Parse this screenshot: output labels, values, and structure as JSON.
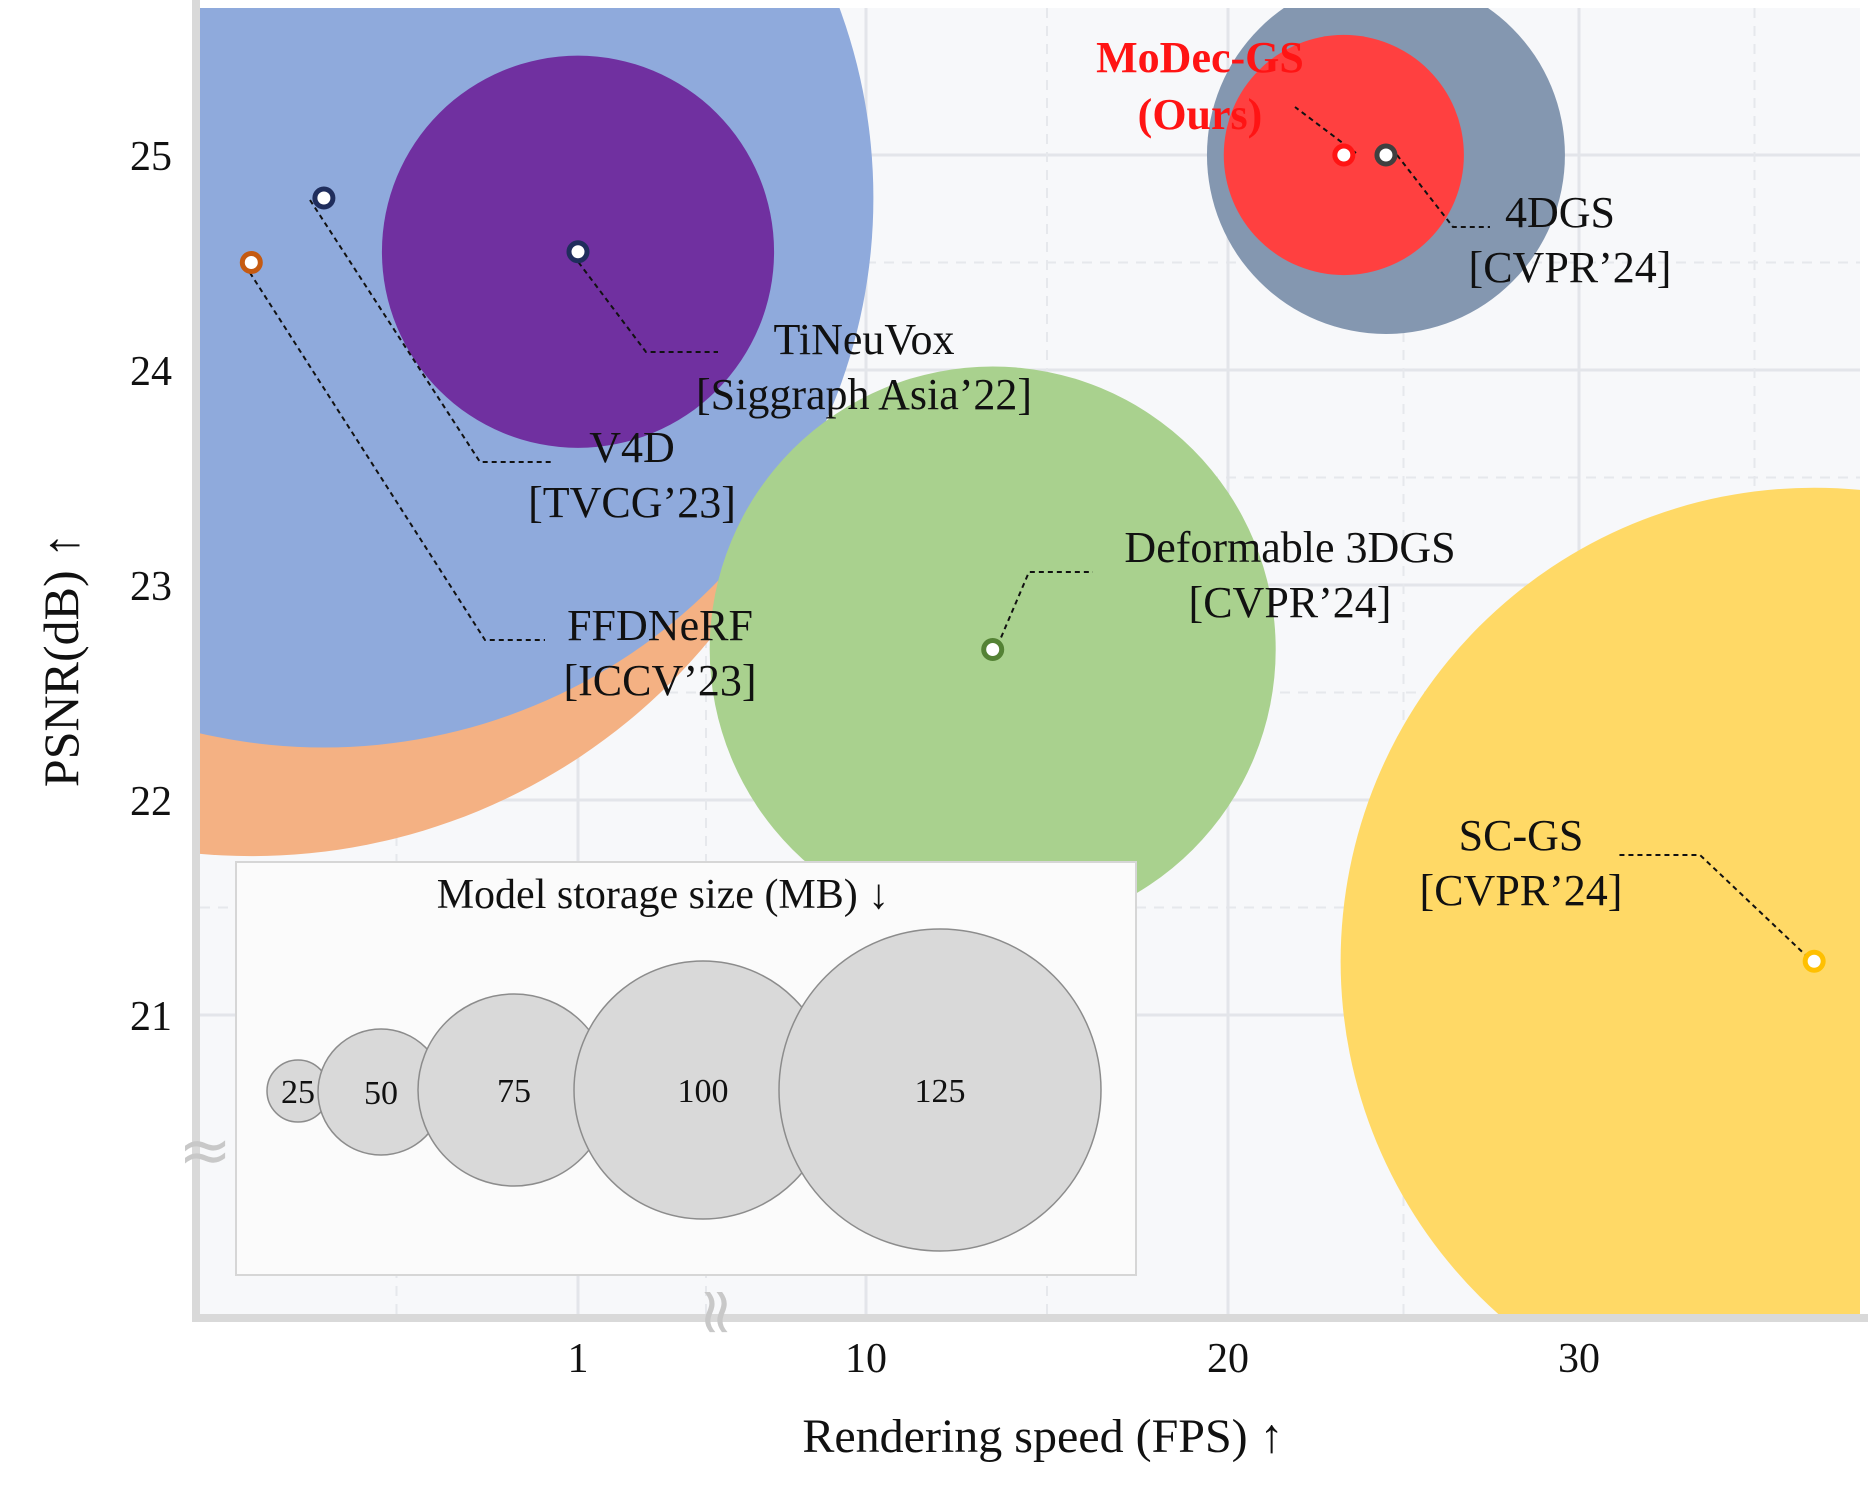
{
  "chart_data": {
    "type": "scatter",
    "bubble": true,
    "xlabel": "Rendering speed (FPS) ↑",
    "ylabel": "PSNR(dB) ↑",
    "x_ticks": [
      "1",
      "10",
      "20",
      "30"
    ],
    "y_ticks": [
      "21",
      "22",
      "23",
      "24",
      "25"
    ],
    "ylim": [
      19.6,
      25.7
    ],
    "axis_breaks": [
      "≈",
      "≈"
    ],
    "grid": true,
    "points": [
      {
        "name": "FFDNeRF",
        "venue": "[ICCV’23]",
        "fps": 0.1,
        "psnr": 24.5,
        "size_mb": 440,
        "color": "#f4b183",
        "marker": "#c55a11"
      },
      {
        "name": "V4D",
        "venue": "[TVCG’23]",
        "fps": 0.3,
        "psnr": 24.8,
        "size_mb": 377,
        "color": "#8faadc",
        "marker": "#1f2d5c"
      },
      {
        "name": "TiNeuVox",
        "venue": "[Siggraph Asia’22]",
        "fps": 1.0,
        "psnr": 24.55,
        "size_mb": 48,
        "color": "#7030a0",
        "marker": "#1f2d5c"
      },
      {
        "name": "Deformable 3DGS",
        "venue": "[CVPR’24]",
        "fps": 13.5,
        "psnr": 22.7,
        "size_mb": 100,
        "color": "#a9d18e",
        "marker": "#548235"
      },
      {
        "name": "4DGS",
        "venue": "[CVPR’24]",
        "fps": 24.5,
        "psnr": 25.0,
        "size_mb": 40,
        "color": "#8497b0",
        "marker": "#404040"
      },
      {
        "name": "MoDec-GS",
        "venue": "(Ours)",
        "fps": 23.3,
        "psnr": 25.0,
        "size_mb": 18,
        "color": "#ff4040",
        "marker": "#ff1414"
      },
      {
        "name": "SC-GS",
        "venue": "[CVPR’24]",
        "fps": 36.7,
        "psnr": 21.25,
        "size_mb": 280,
        "color": "#ffd966",
        "marker": "#ffc000"
      }
    ],
    "legend": {
      "title": "Model storage size (MB) ↓",
      "sizes": [
        "25",
        "50",
        "75",
        "100",
        "125"
      ]
    }
  }
}
